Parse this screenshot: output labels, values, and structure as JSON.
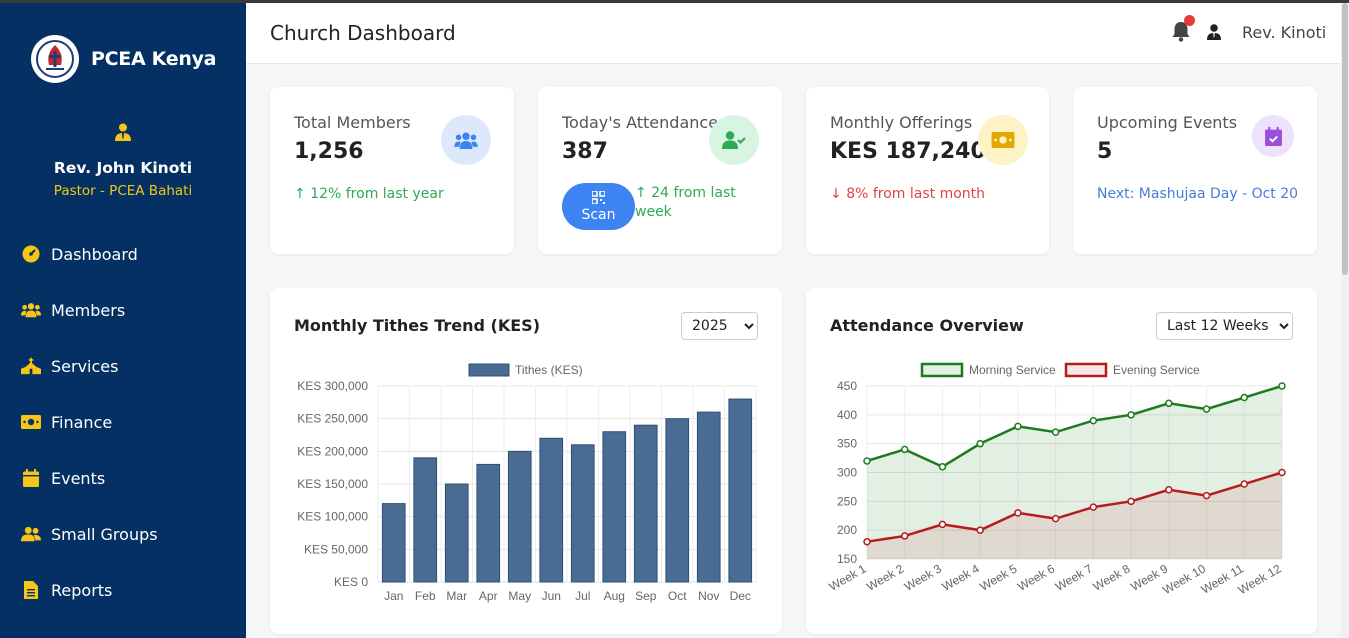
{
  "brand": {
    "name": "PCEA Kenya"
  },
  "profile": {
    "name": "Rev. John Kinoti",
    "role": "Pastor - PCEA Bahati"
  },
  "nav": [
    {
      "label": "Dashboard",
      "icon": "gauge-icon"
    },
    {
      "label": "Members",
      "icon": "users-icon"
    },
    {
      "label": "Services",
      "icon": "church-icon"
    },
    {
      "label": "Finance",
      "icon": "money-icon"
    },
    {
      "label": "Events",
      "icon": "calendar-icon"
    },
    {
      "label": "Small Groups",
      "icon": "user-group-icon"
    },
    {
      "label": "Reports",
      "icon": "file-icon"
    }
  ],
  "header": {
    "title": "Church Dashboard",
    "user_name": "Rev. Kinoti"
  },
  "stats": {
    "members": {
      "label": "Total Members",
      "value": "1,256",
      "change": "12% from last year"
    },
    "attendance": {
      "label": "Today's Attendance",
      "value": "387",
      "change": "24 from last week",
      "scan_label": "Scan"
    },
    "offerings": {
      "label": "Monthly Offerings",
      "value": "KES 187,240",
      "change": "8% from last month"
    },
    "events": {
      "label": "Upcoming Events",
      "value": "5",
      "next": "Next: Mashujaa Day - Oct 20"
    }
  },
  "tithes_card": {
    "title": "Monthly Tithes Trend (KES)",
    "selected": "2025"
  },
  "attendance_card": {
    "title": "Attendance Overview",
    "selected": "Last 12 Weeks"
  },
  "colors": {
    "sidebar": "#053063",
    "accent": "#f5c518",
    "bar": "#4a6b92",
    "morning": "#1f7a1f",
    "evening": "#b71c1c"
  },
  "chart_data": [
    {
      "type": "bar",
      "legend": [
        "Tithes (KES)"
      ],
      "categories": [
        "Jan",
        "Feb",
        "Mar",
        "Apr",
        "May",
        "Jun",
        "Jul",
        "Aug",
        "Sep",
        "Oct",
        "Nov",
        "Dec"
      ],
      "series": [
        {
          "name": "Tithes (KES)",
          "values": [
            120000,
            190000,
            150000,
            180000,
            200000,
            220000,
            210000,
            230000,
            240000,
            250000,
            260000,
            280000
          ]
        }
      ],
      "ylim": [
        0,
        300000
      ],
      "yticks": [
        "KES 0",
        "KES 50,000",
        "KES 100,000",
        "KES 150,000",
        "KES 200,000",
        "KES 250,000",
        "KES 300,000"
      ],
      "grid": true,
      "legend_position": "top"
    },
    {
      "type": "area",
      "categories": [
        "Week 1",
        "Week 2",
        "Week 3",
        "Week 4",
        "Week 5",
        "Week 6",
        "Week 7",
        "Week 8",
        "Week 9",
        "Week 10",
        "Week 11",
        "Week 12"
      ],
      "series": [
        {
          "name": "Morning Service",
          "values": [
            320,
            340,
            310,
            350,
            380,
            370,
            390,
            400,
            420,
            410,
            430,
            450
          ]
        },
        {
          "name": "Evening Service",
          "values": [
            180,
            190,
            210,
            200,
            230,
            220,
            240,
            250,
            270,
            260,
            280,
            300
          ]
        }
      ],
      "ylim": [
        150,
        450
      ],
      "yticks": [
        "150",
        "200",
        "250",
        "300",
        "350",
        "400",
        "450"
      ],
      "grid": true,
      "legend_position": "top"
    }
  ]
}
